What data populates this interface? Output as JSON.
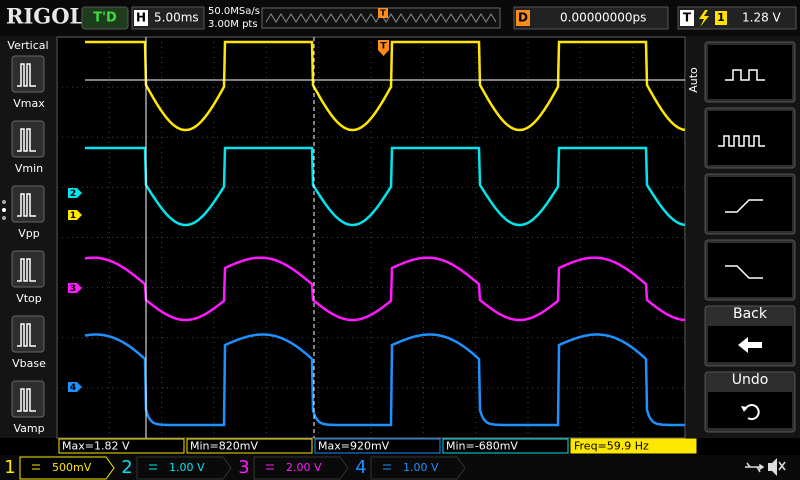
{
  "header": {
    "logo": "RIGOL",
    "status": "T'D",
    "timebase_label": "H",
    "timebase": "5.00ms",
    "sample_rate": "50.0MSa/s",
    "memory_depth": "3.00M pts",
    "trigger_position": "T",
    "delay_label": "D",
    "delay": "0.00000000ps",
    "trigger_label": "T",
    "trigger_source": "1",
    "trigger_level": "1.28 V"
  },
  "left_menu": {
    "title": "Vertical",
    "items": [
      "Vmax",
      "Vmin",
      "Vpp",
      "Vtop",
      "Vbase",
      "Vamp"
    ]
  },
  "right_menu": {
    "title": "Auto",
    "back": "Back",
    "undo": "Undo"
  },
  "channel_markers": [
    "2",
    "1",
    "3",
    "4"
  ],
  "trigger_marker": "T",
  "measurements": [
    "Max=1.82 V",
    "Min=820mV",
    "Max=920mV",
    "Min=-680mV",
    "Freq=59.9 Hz"
  ],
  "channels": [
    {
      "number": "1",
      "scale": "500mV"
    },
    {
      "number": "2",
      "scale": "1.00 V"
    },
    {
      "number": "3",
      "scale": "2.00 V"
    },
    {
      "number": "4",
      "scale": "1.00 V"
    }
  ]
}
